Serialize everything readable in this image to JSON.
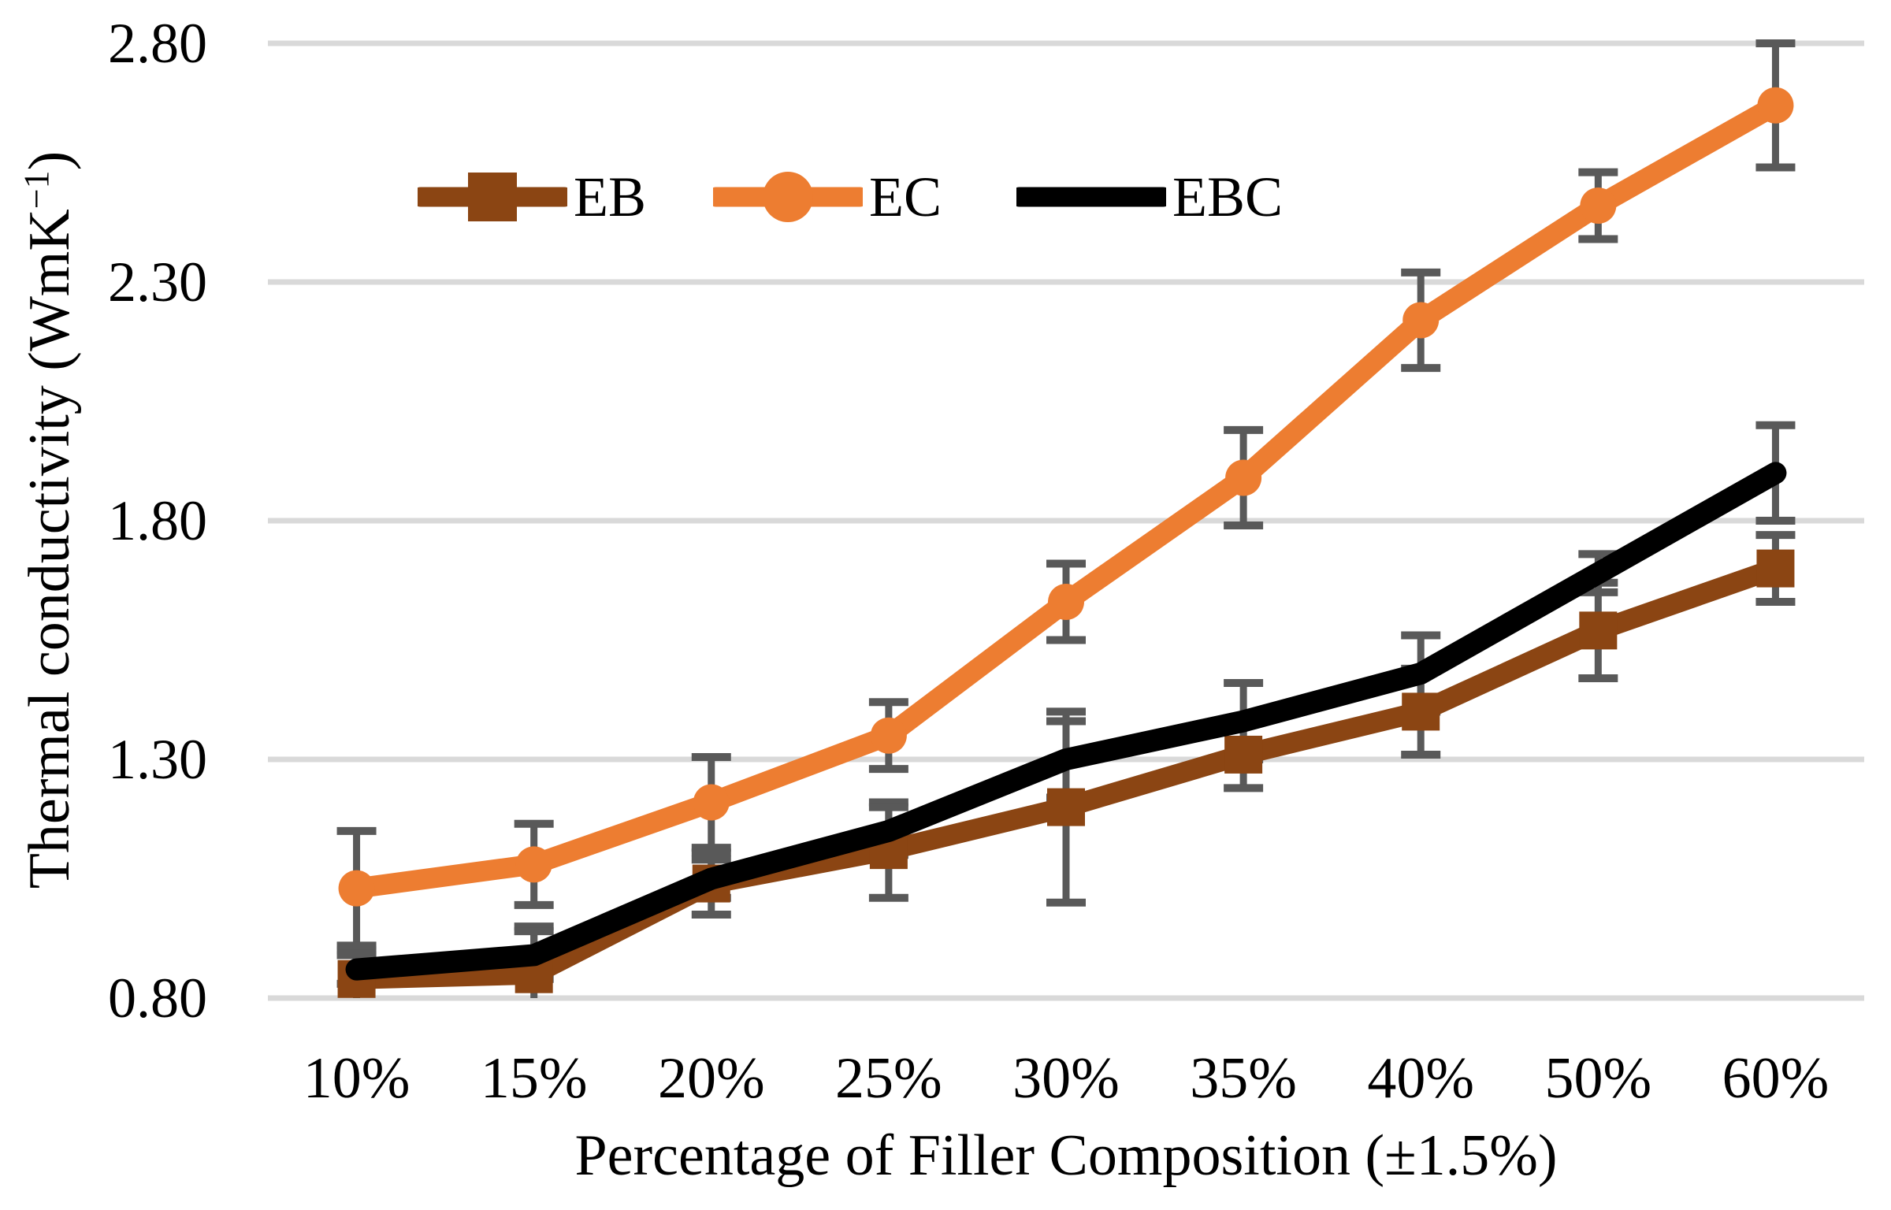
{
  "chart_data": {
    "type": "line",
    "title": "",
    "categories": [
      "10%",
      "15%",
      "20%",
      "25%",
      "30%",
      "35%",
      "40%",
      "50%",
      "60%"
    ],
    "series": [
      {
        "name": "EB",
        "color": "#8B4513",
        "marker": "square",
        "values": [
          0.84,
          0.85,
          1.04,
          1.11,
          1.2,
          1.31,
          1.4,
          1.57,
          1.7
        ],
        "errors": [
          0.06,
          0.1,
          0.065,
          0.1,
          0.2,
          0.07,
          0.09,
          0.1,
          0.07
        ]
      },
      {
        "name": "EC",
        "color": "#ED7D31",
        "marker": "circle",
        "values": [
          1.03,
          1.08,
          1.21,
          1.35,
          1.63,
          1.89,
          2.22,
          2.46,
          2.67
        ],
        "errors": [
          0.12,
          0.085,
          0.095,
          0.07,
          0.08,
          0.1,
          0.1,
          0.07,
          0.13
        ]
      },
      {
        "name": "EBC",
        "color": "#000000",
        "marker": "none",
        "values": [
          0.86,
          0.89,
          1.05,
          1.15,
          1.3,
          1.38,
          1.48,
          1.69,
          1.9
        ],
        "errors": [
          0.03,
          0.05,
          0.04,
          0.05,
          0.08,
          0.08,
          0.08,
          0.04,
          0.1
        ]
      }
    ],
    "xlabel": "Percentage of Filler Composition (±1.5%)",
    "ylabel_prefix": "Thermal conductivity (WmK",
    "ylabel_superscript": "−1",
    "ylabel_suffix": ")",
    "yticks": [
      {
        "label": "2.80",
        "value": 2.8
      },
      {
        "label": "2.30",
        "value": 2.3
      },
      {
        "label": "1.80",
        "value": 1.8
      },
      {
        "label": "1.30",
        "value": 1.3
      },
      {
        "label": "0.80",
        "value": 0.8
      }
    ],
    "ylim": [
      0.8,
      2.8
    ],
    "grid": true,
    "error_bars": true,
    "legend": [
      "EB",
      "EC",
      "EBC"
    ],
    "legend_position": "top-center",
    "colors": {
      "gridline": "#D9D9D9",
      "error_bar": "#595959",
      "text": "#000000",
      "background": "#FFFFFF"
    }
  }
}
